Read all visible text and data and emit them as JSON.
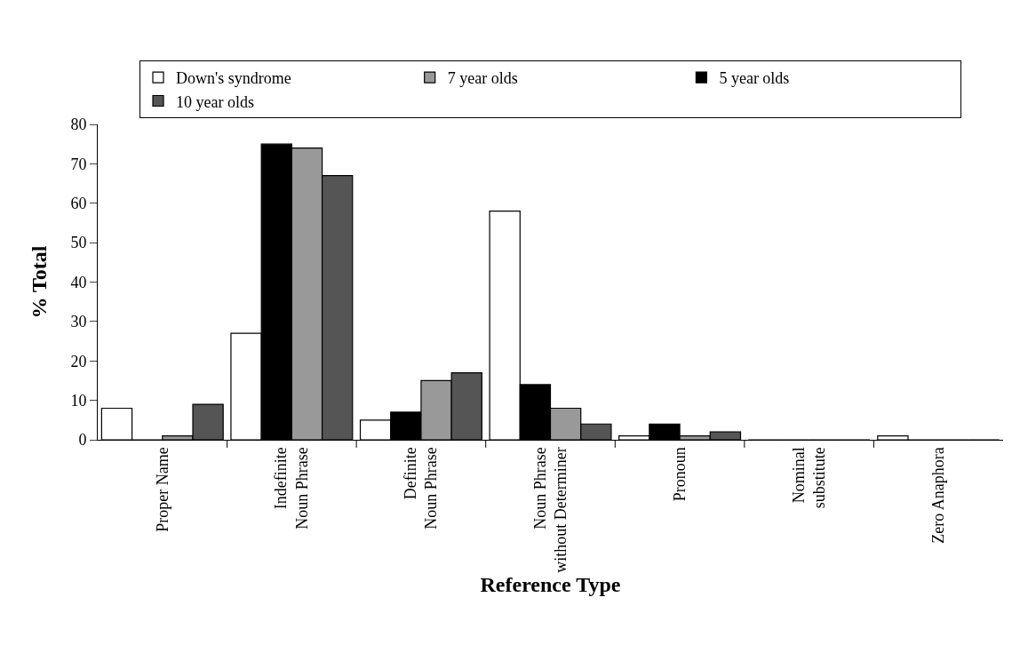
{
  "chart_data": {
    "type": "bar",
    "xlabel": "Reference Type",
    "ylabel": "% Total",
    "categories": [
      "Proper Name",
      "Indefinite\nNoun Phrase",
      "Definite\nNoun Phrase",
      "Noun Phrase\nwithout Determiner",
      "Pronoun",
      "Nominal\nsubstitute",
      "Zero Anaphora"
    ],
    "series": [
      {
        "name": "Down's syndrome",
        "color": "#ffffff",
        "values": [
          8,
          27,
          5,
          58,
          1,
          0,
          1
        ]
      },
      {
        "name": "5 year olds",
        "color": "#000000",
        "values": [
          0,
          75,
          7,
          14,
          4,
          0,
          0
        ]
      },
      {
        "name": "7 year olds",
        "color": "#999999",
        "values": [
          1,
          74,
          15,
          8,
          1,
          0,
          0
        ]
      },
      {
        "name": "10 year olds",
        "color": "#555555",
        "values": [
          9,
          67,
          17,
          4,
          2,
          0,
          0
        ]
      }
    ],
    "ylim": [
      0,
      80
    ],
    "yticks": [
      0,
      10,
      20,
      30,
      40,
      50,
      60,
      70,
      80
    ],
    "grid": false,
    "legend": "top"
  }
}
